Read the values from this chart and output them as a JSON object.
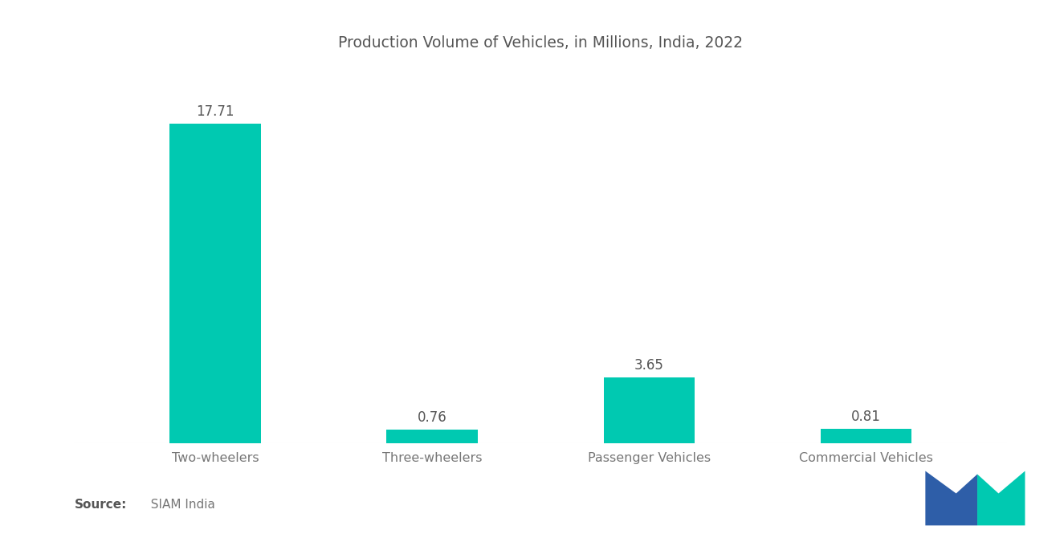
{
  "title": "Production Volume of Vehicles, in Millions, India, 2022",
  "categories": [
    "Two-wheelers",
    "Three-wheelers",
    "Passenger Vehicles",
    "Commercial Vehicles"
  ],
  "values": [
    17.71,
    0.76,
    3.65,
    0.81
  ],
  "bar_color": "#00C9B1",
  "background_color": "#ffffff",
  "source_bold": "Source:",
  "source_normal": "  SIAM India",
  "title_fontsize": 13.5,
  "label_fontsize": 11.5,
  "value_fontsize": 12,
  "source_fontsize": 11,
  "ylim": [
    0,
    21
  ],
  "bar_width": 0.42,
  "logo_blue": "#2E5EA8",
  "logo_teal": "#00C9B1"
}
